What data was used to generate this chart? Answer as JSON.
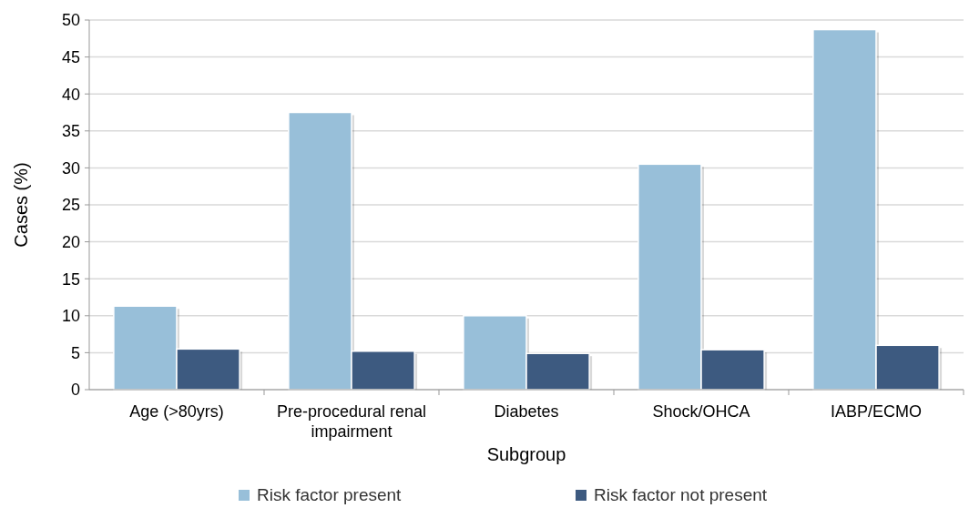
{
  "chart_data": {
    "type": "bar",
    "xlabel": "Subgroup",
    "ylabel": "Cases (%)",
    "categories": [
      "Age (>80yrs)",
      "Pre-procedural renal impairment",
      "Diabetes",
      "Shock/OHCA",
      "IABP/ECMO"
    ],
    "series": [
      {
        "name": "Risk factor present",
        "color": "#98bfd9",
        "values": [
          11.3,
          37.5,
          10.0,
          30.5,
          48.7
        ]
      },
      {
        "name": "Risk factor not present",
        "color": "#3d5a80",
        "values": [
          5.5,
          5.2,
          4.9,
          5.4,
          6.0
        ]
      }
    ],
    "ylim": [
      0,
      50
    ],
    "yticks": [
      0,
      5,
      10,
      15,
      20,
      25,
      30,
      35,
      40,
      45,
      50
    ],
    "grid": "y",
    "legend": "bottom"
  }
}
